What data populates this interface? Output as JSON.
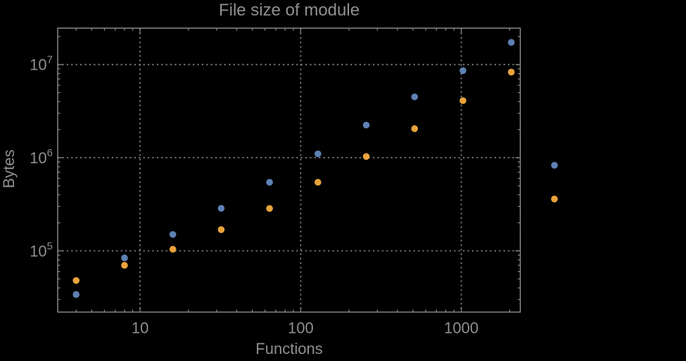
{
  "title": "File size of module",
  "style": {
    "background": "#000000",
    "text_color": "#8f8f8f",
    "frame_color": "#898989",
    "grid_color": "#7a7a7a",
    "series_blue": "#5e81b5",
    "series_orange": "#e8a33c"
  },
  "chart_data": {
    "type": "scatter",
    "title": "File size of module",
    "xlabel": "Functions",
    "ylabel": "Bytes",
    "xscale": "log",
    "yscale": "log",
    "xlim": [
      3.07,
      2330
    ],
    "ylim": [
      22000,
      24600000
    ],
    "grid": "dotted lines at decade ticks, frame with inward minor ticks on all sides",
    "legend": "none",
    "marker_radius": 4.8,
    "xticks": [
      {
        "value": 10,
        "label": "10"
      },
      {
        "value": 100,
        "label": "100"
      },
      {
        "value": 1000,
        "label": "1000"
      }
    ],
    "yticks": [
      {
        "value": 100000,
        "base": "10",
        "exp": "5"
      },
      {
        "value": 1000000,
        "base": "10",
        "exp": "6"
      },
      {
        "value": 10000000,
        "base": "10",
        "exp": "7"
      }
    ],
    "x": [
      4,
      8,
      16,
      32,
      64,
      128,
      256,
      512,
      1024,
      2048,
      3800
    ],
    "series": [
      {
        "name": "series-blue",
        "color": "#5e81b5",
        "values": [
          34000,
          84000,
          150000,
          286000,
          545000,
          1100000,
          2240000,
          4500000,
          8600000,
          17300000,
          830000
        ]
      },
      {
        "name": "series-orange",
        "color": "#e8a33c",
        "values": [
          48000,
          70000,
          104000,
          169000,
          285000,
          545000,
          1030000,
          2050000,
          4100000,
          8300000,
          360000
        ]
      }
    ],
    "note": "last x column (~3800 functions) is plotted outside the right frame edge (unclipped points)"
  }
}
